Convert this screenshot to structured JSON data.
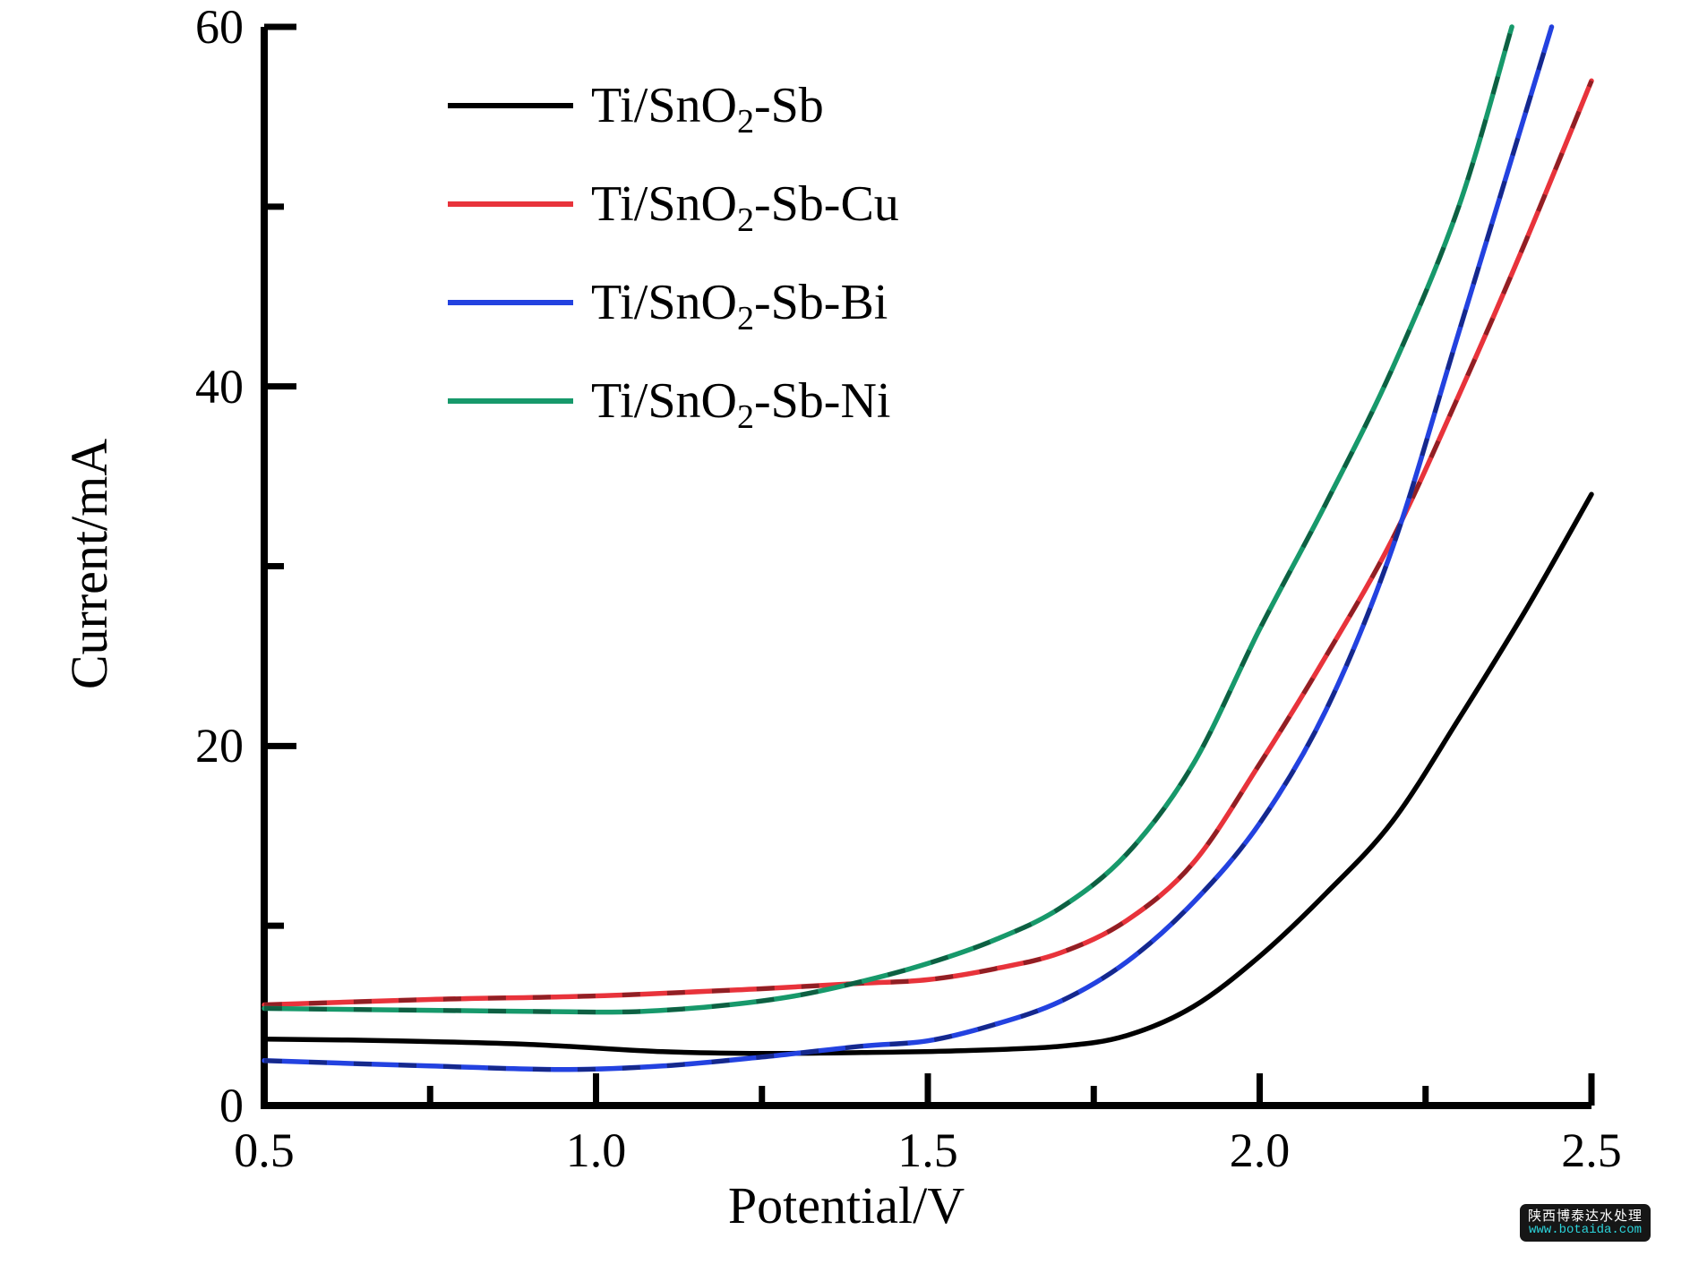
{
  "chart_data": {
    "type": "line",
    "title": "",
    "xlabel": "Potential/V",
    "ylabel": "Current/mA",
    "xlim": [
      0.5,
      2.5
    ],
    "ylim": [
      0,
      60
    ],
    "grid": false,
    "legend_position": "upper-left",
    "x_tick_values": [
      0.5,
      1.0,
      1.5,
      2.0,
      2.5
    ],
    "x_tick_labels": [
      "0.5",
      "1.0",
      "1.5",
      "2.0",
      "2.5"
    ],
    "x_minor_ticks": [
      0.75,
      1.25,
      1.75,
      2.25
    ],
    "y_tick_values": [
      0,
      20,
      40,
      60
    ],
    "y_tick_labels": [
      "0",
      "20",
      "40",
      "60"
    ],
    "y_minor_ticks": [
      10,
      30,
      50
    ],
    "series": [
      {
        "name": "Ti/SnO2-Sb",
        "color": "#000000",
        "dashed_overlay": false,
        "points": [
          [
            0.5,
            3.7
          ],
          [
            0.7,
            3.6
          ],
          [
            0.9,
            3.4
          ],
          [
            1.1,
            3.0
          ],
          [
            1.25,
            2.9
          ],
          [
            1.4,
            2.95
          ],
          [
            1.55,
            3.05
          ],
          [
            1.7,
            3.3
          ],
          [
            1.8,
            3.9
          ],
          [
            1.9,
            5.5
          ],
          [
            2.0,
            8.3
          ],
          [
            2.1,
            11.8
          ],
          [
            2.2,
            15.8
          ],
          [
            2.3,
            21.5
          ],
          [
            2.4,
            27.5
          ],
          [
            2.5,
            34.0
          ]
        ]
      },
      {
        "name": "Ti/SnO2-Sb-Cu",
        "color": "#e8333b",
        "dashed_overlay": true,
        "points": [
          [
            0.5,
            5.6
          ],
          [
            0.75,
            5.9
          ],
          [
            1.0,
            6.1
          ],
          [
            1.25,
            6.5
          ],
          [
            1.4,
            6.8
          ],
          [
            1.5,
            7.0
          ],
          [
            1.6,
            7.6
          ],
          [
            1.7,
            8.5
          ],
          [
            1.8,
            10.3
          ],
          [
            1.9,
            13.5
          ],
          [
            2.0,
            19.0
          ],
          [
            2.1,
            25.0
          ],
          [
            2.2,
            31.5
          ],
          [
            2.3,
            39.5
          ],
          [
            2.4,
            48.0
          ],
          [
            2.5,
            57.0
          ]
        ]
      },
      {
        "name": "Ti/SnO2-Sb-Bi",
        "color": "#2342e0",
        "dashed_overlay": true,
        "points": [
          [
            0.5,
            2.5
          ],
          [
            0.75,
            2.2
          ],
          [
            0.95,
            2.0
          ],
          [
            1.1,
            2.2
          ],
          [
            1.25,
            2.7
          ],
          [
            1.4,
            3.3
          ],
          [
            1.5,
            3.6
          ],
          [
            1.6,
            4.5
          ],
          [
            1.7,
            5.8
          ],
          [
            1.8,
            8.0
          ],
          [
            1.9,
            11.3
          ],
          [
            2.0,
            15.7
          ],
          [
            2.1,
            22.0
          ],
          [
            2.2,
            31.0
          ],
          [
            2.3,
            43.0
          ],
          [
            2.44,
            60.0
          ]
        ]
      },
      {
        "name": "Ti/SnO2-Sb-Ni",
        "color": "#17996b",
        "dashed_overlay": true,
        "points": [
          [
            0.5,
            5.4
          ],
          [
            0.75,
            5.3
          ],
          [
            1.0,
            5.2
          ],
          [
            1.1,
            5.3
          ],
          [
            1.2,
            5.6
          ],
          [
            1.3,
            6.1
          ],
          [
            1.4,
            6.9
          ],
          [
            1.5,
            7.9
          ],
          [
            1.6,
            9.2
          ],
          [
            1.7,
            11.0
          ],
          [
            1.8,
            14.0
          ],
          [
            1.9,
            19.0
          ],
          [
            2.0,
            26.5
          ],
          [
            2.1,
            33.5
          ],
          [
            2.2,
            41.0
          ],
          [
            2.3,
            50.0
          ],
          [
            2.38,
            60.0
          ]
        ]
      }
    ]
  },
  "legend": {
    "entries": [
      {
        "pre": "Ti/SnO",
        "sub": "2",
        "post": "-Sb",
        "color": "#000000"
      },
      {
        "pre": "Ti/SnO",
        "sub": "2",
        "post": "-Sb-Cu",
        "color": "#e8333b"
      },
      {
        "pre": "Ti/SnO",
        "sub": "2",
        "post": "-Sb-Bi",
        "color": "#2342e0"
      },
      {
        "pre": "Ti/SnO",
        "sub": "2",
        "post": "-Sb-Ni",
        "color": "#17996b"
      }
    ]
  },
  "watermark": {
    "line1": "陕西博泰达水处理",
    "line2": "www.botaida.com",
    "bg_color": "#161616",
    "line1_color": "#ffffff",
    "line2_color": "#2bd3da"
  },
  "colors": {
    "axis": "#000000",
    "background": "#ffffff"
  }
}
